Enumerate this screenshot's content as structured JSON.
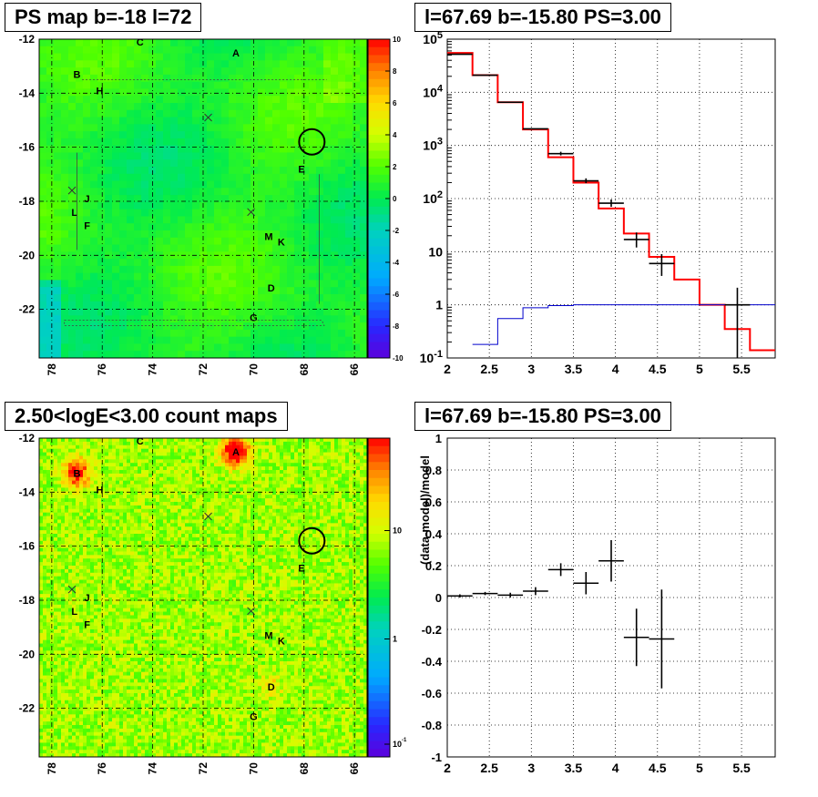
{
  "chart_data": [
    {
      "type": "heatmap",
      "title": "PS map b=-18 l=72",
      "x_axis": {
        "reversed": true,
        "ticks": [
          "78",
          "76",
          "74",
          "72",
          "70",
          "68",
          "66"
        ],
        "range": [
          78.5,
          65.5
        ]
      },
      "y_axis": {
        "ticks": [
          "-12",
          "-14",
          "-16",
          "-18",
          "-20",
          "-22"
        ],
        "range": [
          -23.8,
          -12
        ]
      },
      "colorbar": {
        "scale": "linear",
        "range": [
          -10,
          10
        ],
        "ticks": [
          "10",
          "8",
          "6",
          "4",
          "2",
          "0",
          "-2",
          "-4",
          "-6",
          "-8",
          "-10"
        ]
      },
      "grid": true,
      "sources": [
        {
          "label": "A",
          "l": 70.7,
          "b": -12.5
        },
        {
          "label": "B",
          "l": 77.0,
          "b": -13.3
        },
        {
          "label": "C",
          "l": 74.5,
          "b": -12.1
        },
        {
          "label": "H",
          "l": 76.1,
          "b": -13.9
        },
        {
          "label": "E",
          "l": 68.1,
          "b": -16.8
        },
        {
          "label": "J",
          "l": 76.6,
          "b": -17.9
        },
        {
          "label": "L",
          "l": 77.1,
          "b": -18.4
        },
        {
          "label": "F",
          "l": 76.6,
          "b": -18.9
        },
        {
          "label": "M",
          "l": 69.4,
          "b": -19.3
        },
        {
          "label": "K",
          "l": 68.9,
          "b": -19.5
        },
        {
          "label": "D",
          "l": 69.3,
          "b": -21.2
        },
        {
          "label": "G",
          "l": 70.0,
          "b": -22.3
        }
      ],
      "crosses": [
        {
          "l": 71.8,
          "b": -14.9
        },
        {
          "l": 77.2,
          "b": -17.6
        },
        {
          "l": 70.1,
          "b": -18.4
        }
      ],
      "circle": {
        "l": 67.69,
        "b": -15.8
      }
    },
    {
      "type": "step",
      "title": "l=67.69 b=-15.80 PS=3.00",
      "x_axis": {
        "range": [
          2,
          5.9
        ],
        "ticks": [
          "2",
          "2.5",
          "3",
          "3.5",
          "4",
          "4.5",
          "5",
          "5.5"
        ]
      },
      "y_axis": {
        "scale": "log",
        "range": [
          0.1,
          100000
        ],
        "ticks": [
          "10^-1",
          "1",
          "10",
          "10^2",
          "10^3",
          "10^4",
          "10^5"
        ]
      },
      "grid": true,
      "series": [
        {
          "color": "#ff0000",
          "edges": [
            2.0,
            2.3,
            2.6,
            2.9,
            3.2,
            3.5,
            3.8,
            4.1,
            4.4,
            4.7,
            5.0,
            5.3,
            5.6,
            5.9
          ],
          "values": [
            55000,
            21000,
            6500,
            2000,
            600,
            200,
            65,
            22,
            8,
            3,
            1,
            0.35,
            0.14
          ]
        },
        {
          "color": "#0000cc",
          "edges": [
            2.3,
            2.6,
            2.9,
            3.2,
            3.5,
            5.9
          ],
          "values": [
            0.18,
            0.55,
            0.88,
            0.97,
            1.0
          ]
        }
      ],
      "points": [
        {
          "x": 2.15,
          "xerr": 0.15,
          "y": 52000,
          "lo": 52000,
          "hi": 52000
        },
        {
          "x": 2.45,
          "xerr": 0.15,
          "y": 21000,
          "lo": 21000,
          "hi": 21000
        },
        {
          "x": 2.75,
          "xerr": 0.15,
          "y": 6500,
          "lo": 6500,
          "hi": 6500
        },
        {
          "x": 3.05,
          "xerr": 0.15,
          "y": 2050,
          "lo": 2050,
          "hi": 2050
        },
        {
          "x": 3.35,
          "xerr": 0.15,
          "y": 700,
          "lo": 650,
          "hi": 760
        },
        {
          "x": 3.65,
          "xerr": 0.15,
          "y": 215,
          "lo": 195,
          "hi": 240
        },
        {
          "x": 3.95,
          "xerr": 0.15,
          "y": 82,
          "lo": 70,
          "hi": 96
        },
        {
          "x": 4.25,
          "xerr": 0.15,
          "y": 17,
          "lo": 12,
          "hi": 23
        },
        {
          "x": 4.55,
          "xerr": 0.15,
          "y": 6,
          "lo": 3.5,
          "hi": 9
        },
        {
          "x": 5.45,
          "xerr": 0.15,
          "y": 1,
          "lo": 0.1,
          "hi": 2.1
        }
      ]
    },
    {
      "type": "heatmap",
      "title": "2.50<logE<3.00 count maps",
      "x_axis": {
        "reversed": true,
        "ticks": [
          "78",
          "76",
          "74",
          "72",
          "70",
          "68",
          "66"
        ],
        "range": [
          78.5,
          65.5
        ]
      },
      "y_axis": {
        "ticks": [
          "-12",
          "-14",
          "-16",
          "-18",
          "-20",
          "-22"
        ],
        "range": [
          -23.8,
          -12
        ]
      },
      "colorbar": {
        "scale": "log",
        "ticks": [
          "10",
          "1",
          "10^-1"
        ]
      },
      "grid": true
    },
    {
      "type": "scatter",
      "title": "l=67.69 b=-15.80 PS=3.00",
      "ylabel": "(data-model)/model",
      "x_axis": {
        "range": [
          2,
          5.9
        ],
        "ticks": [
          "2",
          "2.5",
          "3",
          "3.5",
          "4",
          "4.5",
          "5",
          "5.5"
        ]
      },
      "y_axis": {
        "range": [
          -1,
          1
        ],
        "ticks": [
          "1",
          "0.8",
          "0.6",
          "0.4",
          "0.2",
          "0",
          "-0.2",
          "-0.4",
          "-0.6",
          "-0.8",
          "-1"
        ]
      },
      "grid": true,
      "points": [
        {
          "x": 2.15,
          "xerr": 0.15,
          "y": 0.01,
          "yerr": 0.01
        },
        {
          "x": 2.45,
          "xerr": 0.15,
          "y": 0.025,
          "yerr": 0.01
        },
        {
          "x": 2.75,
          "xerr": 0.15,
          "y": 0.015,
          "yerr": 0.015
        },
        {
          "x": 3.05,
          "xerr": 0.15,
          "y": 0.04,
          "yerr": 0.025
        },
        {
          "x": 3.35,
          "xerr": 0.15,
          "y": 0.175,
          "yerr": 0.04
        },
        {
          "x": 3.65,
          "xerr": 0.15,
          "y": 0.09,
          "yerr": 0.07
        },
        {
          "x": 3.95,
          "xerr": 0.15,
          "y": 0.23,
          "yerr": 0.13
        },
        {
          "x": 4.25,
          "xerr": 0.15,
          "y": -0.25,
          "yerr": 0.18
        },
        {
          "x": 4.55,
          "xerr": 0.15,
          "y": -0.26,
          "yerr": 0.31
        }
      ]
    }
  ]
}
